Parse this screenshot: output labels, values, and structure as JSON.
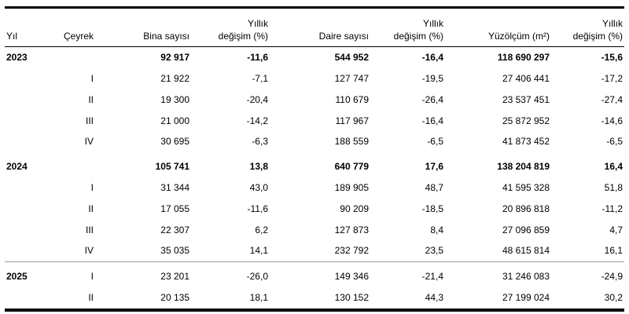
{
  "chart_data": {
    "type": "table",
    "title": "",
    "columns": [
      {
        "key": "yil",
        "label": "Yıl",
        "align": "left"
      },
      {
        "key": "ceyrek",
        "label": "Çeyrek",
        "align": "right"
      },
      {
        "key": "bina_sayisi",
        "label": "Bina sayısı",
        "align": "right"
      },
      {
        "key": "bina_yillik_degisim",
        "label": "Yıllık\ndeğişim (%)",
        "align": "right"
      },
      {
        "key": "daire_sayisi",
        "label": "Daire sayısı",
        "align": "right"
      },
      {
        "key": "daire_yillik_degisim",
        "label": "Yıllık\ndeğişim (%)",
        "align": "right"
      },
      {
        "key": "yuzolcum_m2",
        "label": "Yüzölçüm (m²)",
        "align": "right"
      },
      {
        "key": "yuzolcum_yillik_degisim",
        "label": "Yıllık\ndeğişim (%)",
        "align": "right"
      }
    ],
    "rows": [
      {
        "cells": [
          "2023",
          "",
          "92 917",
          "-11,6",
          "544 952",
          "-16,4",
          "118 690 297",
          "-15,6"
        ],
        "emphasis": "total",
        "group_start": false,
        "top_border": false
      },
      {
        "cells": [
          "",
          "I",
          "21 922",
          "-7,1",
          "127 747",
          "-19,5",
          "27 406 441",
          "-17,2"
        ],
        "emphasis": "none",
        "group_start": false,
        "top_border": false
      },
      {
        "cells": [
          "",
          "II",
          "19 300",
          "-20,4",
          "110 679",
          "-26,4",
          "23 537 451",
          "-27,4"
        ],
        "emphasis": "none",
        "group_start": false,
        "top_border": false
      },
      {
        "cells": [
          "",
          "III",
          "21 000",
          "-14,2",
          "117 967",
          "-16,4",
          "25 872 952",
          "-14,6"
        ],
        "emphasis": "none",
        "group_start": false,
        "top_border": false
      },
      {
        "cells": [
          "",
          "IV",
          "30 695",
          "-6,3",
          "188 559",
          "-6,5",
          "41 873 452",
          "-6,5"
        ],
        "emphasis": "none",
        "group_start": false,
        "top_border": false
      },
      {
        "cells": [
          "2024",
          "",
          "105 741",
          "13,8",
          "640 779",
          "17,6",
          "138 204 819",
          "16,4"
        ],
        "emphasis": "total",
        "group_start": true,
        "top_border": false
      },
      {
        "cells": [
          "",
          "I",
          "31 344",
          "43,0",
          "189 905",
          "48,7",
          "41 595 328",
          "51,8"
        ],
        "emphasis": "none",
        "group_start": false,
        "top_border": false
      },
      {
        "cells": [
          "",
          "II",
          "17 055",
          "-11,6",
          "90 209",
          "-18,5",
          "20 896 818",
          "-11,2"
        ],
        "emphasis": "none",
        "group_start": false,
        "top_border": false
      },
      {
        "cells": [
          "",
          "III",
          "22 307",
          "6,2",
          "127 873",
          "8,4",
          "27 096 859",
          "4,7"
        ],
        "emphasis": "none",
        "group_start": false,
        "top_border": false
      },
      {
        "cells": [
          "",
          "IV",
          "35 035",
          "14,1",
          "232 792",
          "23,5",
          "48 615 814",
          "16,1"
        ],
        "emphasis": "none",
        "group_start": false,
        "top_border": false
      },
      {
        "cells": [
          "2025",
          "I",
          "23 201",
          "-26,0",
          "149 346",
          "-21,4",
          "31 246 083",
          "-24,9"
        ],
        "emphasis": "year",
        "group_start": true,
        "top_border": true
      },
      {
        "cells": [
          "",
          "II",
          "20 135",
          "18,1",
          "130 152",
          "44,3",
          "27 199 024",
          "30,2"
        ],
        "emphasis": "none",
        "group_start": false,
        "top_border": false
      }
    ],
    "colors": {
      "background": "#ffffff",
      "text": "#000000",
      "rule_heavy": "#000000",
      "rule_light": "#a0a0a0"
    },
    "layout": {
      "grid": false,
      "legend": "none"
    }
  }
}
